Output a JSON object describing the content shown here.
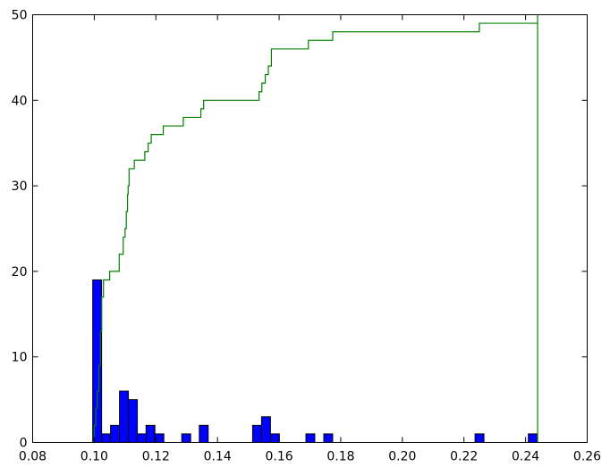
{
  "chart_data": {
    "type": "bar",
    "title": "",
    "xlabel": "",
    "ylabel": "",
    "xlim": [
      0.08,
      0.26
    ],
    "ylim": [
      0,
      50
    ],
    "xticks": [
      "0.08",
      "0.10",
      "0.12",
      "0.14",
      "0.16",
      "0.18",
      "0.20",
      "0.22",
      "0.24",
      "0.26"
    ],
    "yticks": [
      "0",
      "10",
      "20",
      "30",
      "40",
      "50"
    ],
    "grid": false,
    "legend": "none",
    "bin_width": 0.002886,
    "series": [
      {
        "kind": "histogram",
        "color": "#0000ff",
        "bars": [
          {
            "x0": 0.0995,
            "count": 19
          },
          {
            "x0": 0.1024,
            "count": 1
          },
          {
            "x0": 0.1053,
            "count": 2
          },
          {
            "x0": 0.1082,
            "count": 6
          },
          {
            "x0": 0.1111,
            "count": 5
          },
          {
            "x0": 0.114,
            "count": 1
          },
          {
            "x0": 0.1168,
            "count": 2
          },
          {
            "x0": 0.1197,
            "count": 1
          },
          {
            "x0": 0.1284,
            "count": 1
          },
          {
            "x0": 0.1341,
            "count": 2
          },
          {
            "x0": 0.1514,
            "count": 2
          },
          {
            "x0": 0.1543,
            "count": 3
          },
          {
            "x0": 0.1572,
            "count": 1
          },
          {
            "x0": 0.1687,
            "count": 1
          },
          {
            "x0": 0.1745,
            "count": 1
          },
          {
            "x0": 0.2236,
            "count": 1
          },
          {
            "x0": 0.2409,
            "count": 1
          }
        ]
      },
      {
        "kind": "cumulative-step",
        "color": "#008000",
        "steps": [
          [
            0.0995,
            0
          ],
          [
            0.1,
            2
          ],
          [
            0.1005,
            4
          ],
          [
            0.101,
            6
          ],
          [
            0.1015,
            9
          ],
          [
            0.102,
            13
          ],
          [
            0.1024,
            17
          ],
          [
            0.103,
            19
          ],
          [
            0.105,
            20
          ],
          [
            0.1081,
            22
          ],
          [
            0.1094,
            24
          ],
          [
            0.11,
            25
          ],
          [
            0.1104,
            27
          ],
          [
            0.1108,
            29
          ],
          [
            0.111,
            30
          ],
          [
            0.1113,
            32
          ],
          [
            0.113,
            33
          ],
          [
            0.1164,
            34
          ],
          [
            0.1175,
            35
          ],
          [
            0.1185,
            36
          ],
          [
            0.1224,
            37
          ],
          [
            0.1289,
            38
          ],
          [
            0.1346,
            39
          ],
          [
            0.1355,
            40
          ],
          [
            0.1535,
            41
          ],
          [
            0.1544,
            42
          ],
          [
            0.1555,
            43
          ],
          [
            0.1565,
            44
          ],
          [
            0.1575,
            46
          ],
          [
            0.1695,
            47
          ],
          [
            0.1774,
            48
          ],
          [
            0.225,
            49
          ],
          [
            0.2439,
            50
          ]
        ],
        "end_drop_x": 0.2439
      }
    ]
  }
}
